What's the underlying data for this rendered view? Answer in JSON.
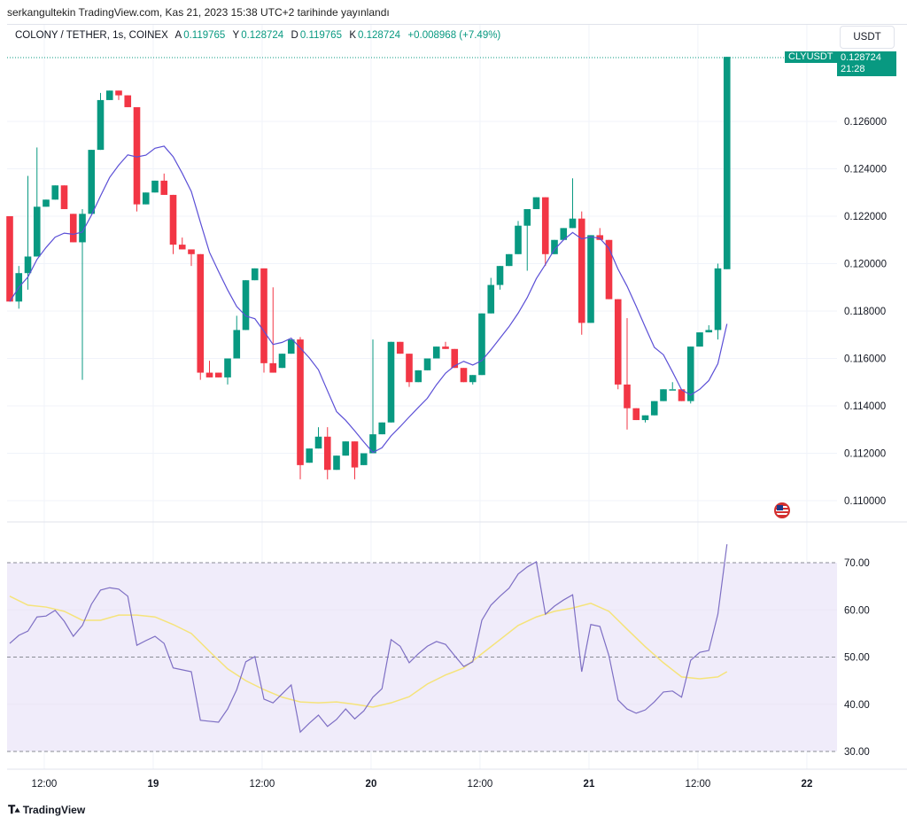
{
  "published": "serkangultekin TradingView.com, Kas 21, 2023 15:38 UTC+2 tarihinde yayınlandı",
  "legend": {
    "symbol": "COLONY / TETHER, 1s, COINEX",
    "open_label": "A",
    "open": "0.119765",
    "high_label": "Y",
    "high": "0.128724",
    "low_label": "D",
    "low": "0.119765",
    "close_label": "K",
    "close": "0.128724",
    "change": "+0.008968 (+7.49%)"
  },
  "currency_button": "USDT",
  "last_price": {
    "ticker": "CLYUSDT",
    "price": "0.128724",
    "countdown": "21:28"
  },
  "colors": {
    "up": "#089981",
    "down": "#f23645",
    "ma": "#5b4fd6",
    "rsi": "#7e6fc4",
    "rsi_ma": "#f5e37a",
    "rsi_band": "#f0ecfa"
  },
  "footer": {
    "brand": "TradingView"
  },
  "icons": {
    "flag": "us-flag-icon",
    "logo": "tradingview-logo-icon"
  },
  "chart_data": {
    "type": "candlestick",
    "price_axis": {
      "ticks": [
        "0.126000",
        "0.124000",
        "0.122000",
        "0.120000",
        "0.118000",
        "0.116000",
        "0.114000",
        "0.112000",
        "0.110000"
      ],
      "values": [
        0.126,
        0.124,
        0.122,
        0.12,
        0.118,
        0.116,
        0.114,
        0.112,
        0.11
      ]
    },
    "time_axis": {
      "ticks": [
        "12:00",
        "19",
        "12:00",
        "20",
        "12:00",
        "21",
        "12:00",
        "22"
      ],
      "bold": [
        false,
        true,
        false,
        true,
        false,
        true,
        false,
        true
      ],
      "candle_index": [
        3.8,
        15.8,
        27.8,
        39.8,
        51.8,
        63.8,
        75.8,
        87.8
      ]
    },
    "ma_period": 9,
    "candles": [
      [
        0.122,
        0.122,
        0.1184,
        0.1184
      ],
      [
        0.1184,
        0.1199,
        0.1181,
        0.1196
      ],
      [
        0.1196,
        0.1237,
        0.1189,
        0.1203
      ],
      [
        0.1203,
        0.1249,
        0.1203,
        0.1224
      ],
      [
        0.1224,
        0.1227,
        0.1224,
        0.1227
      ],
      [
        0.1227,
        0.1233,
        0.1227,
        0.1233
      ],
      [
        0.1233,
        0.1233,
        0.1223,
        0.1223
      ],
      [
        0.1221,
        0.1221,
        0.1209,
        0.1209
      ],
      [
        0.1209,
        0.1223,
        0.1151,
        0.1221
      ],
      [
        0.1221,
        0.1248,
        0.1221,
        0.1248
      ],
      [
        0.1248,
        0.1272,
        0.1248,
        0.1269
      ],
      [
        0.1269,
        0.1273,
        0.1269,
        0.1273
      ],
      [
        0.1273,
        0.1273,
        0.1269,
        0.1271
      ],
      [
        0.1271,
        0.1271,
        0.1266,
        0.1266
      ],
      [
        0.1266,
        0.1266,
        0.1222,
        0.1225
      ],
      [
        0.1225,
        0.123,
        0.1225,
        0.123
      ],
      [
        0.123,
        0.1235,
        0.123,
        0.1235
      ],
      [
        0.1235,
        0.1238,
        0.1229,
        0.1229
      ],
      [
        0.1229,
        0.1229,
        0.1204,
        0.1208
      ],
      [
        0.1208,
        0.1211,
        0.1206,
        0.1206
      ],
      [
        0.1206,
        0.1206,
        0.1199,
        0.1204
      ],
      [
        0.1204,
        0.1204,
        0.1151,
        0.1154
      ],
      [
        0.1154,
        0.1159,
        0.1152,
        0.1152
      ],
      [
        0.1154,
        0.1154,
        0.1152,
        0.1152
      ],
      [
        0.1152,
        0.116,
        0.1149,
        0.116
      ],
      [
        0.116,
        0.1178,
        0.116,
        0.1172
      ],
      [
        0.1172,
        0.1193,
        0.1172,
        0.1193
      ],
      [
        0.1193,
        0.1198,
        0.1193,
        0.1198
      ],
      [
        0.1198,
        0.1198,
        0.1154,
        0.1158
      ],
      [
        0.1158,
        0.119,
        0.1154,
        0.1154
      ],
      [
        0.1156,
        0.1162,
        0.1156,
        0.1162
      ],
      [
        0.1162,
        0.1168,
        0.1162,
        0.1168
      ],
      [
        0.1168,
        0.1169,
        0.1109,
        0.1115
      ],
      [
        0.1116,
        0.1122,
        0.1116,
        0.1122
      ],
      [
        0.1122,
        0.1131,
        0.1122,
        0.1127
      ],
      [
        0.1127,
        0.1131,
        0.1109,
        0.1113
      ],
      [
        0.1113,
        0.1119,
        0.1113,
        0.1119
      ],
      [
        0.1119,
        0.1125,
        0.1119,
        0.1125
      ],
      [
        0.1125,
        0.1125,
        0.1109,
        0.1114
      ],
      [
        0.1115,
        0.112,
        0.1115,
        0.112
      ],
      [
        0.112,
        0.1168,
        0.112,
        0.1128
      ],
      [
        0.1128,
        0.1133,
        0.1128,
        0.1133
      ],
      [
        0.1133,
        0.1167,
        0.1133,
        0.1167
      ],
      [
        0.1167,
        0.1167,
        0.1162,
        0.1162
      ],
      [
        0.1162,
        0.1162,
        0.1148,
        0.115
      ],
      [
        0.115,
        0.1155,
        0.115,
        0.1155
      ],
      [
        0.1155,
        0.116,
        0.1155,
        0.116
      ],
      [
        0.116,
        0.1165,
        0.116,
        0.1165
      ],
      [
        0.1165,
        0.1167,
        0.1164,
        0.1164
      ],
      [
        0.1164,
        0.1164,
        0.1156,
        0.1156
      ],
      [
        0.1156,
        0.1156,
        0.115,
        0.115
      ],
      [
        0.115,
        0.1153,
        0.1149,
        0.1153
      ],
      [
        0.1153,
        0.1179,
        0.1153,
        0.1179
      ],
      [
        0.1179,
        0.1194,
        0.1179,
        0.1191
      ],
      [
        0.1191,
        0.1199,
        0.1189,
        0.1199
      ],
      [
        0.1199,
        0.1204,
        0.1199,
        0.1204
      ],
      [
        0.1204,
        0.1218,
        0.1204,
        0.1216
      ],
      [
        0.1216,
        0.1223,
        0.1197,
        0.1223
      ],
      [
        0.1223,
        0.1228,
        0.1223,
        0.1228
      ],
      [
        0.1228,
        0.1228,
        0.1199,
        0.1204
      ],
      [
        0.1204,
        0.121,
        0.1204,
        0.121
      ],
      [
        0.121,
        0.1215,
        0.121,
        0.1215
      ],
      [
        0.1215,
        0.1236,
        0.1215,
        0.1219
      ],
      [
        0.1219,
        0.1222,
        0.117,
        0.1175
      ],
      [
        0.1175,
        0.1212,
        0.1175,
        0.1212
      ],
      [
        0.1212,
        0.1215,
        0.121,
        0.121
      ],
      [
        0.121,
        0.121,
        0.1185,
        0.1185
      ],
      [
        0.1185,
        0.1185,
        0.1147,
        0.1149
      ],
      [
        0.1149,
        0.1177,
        0.113,
        0.1139
      ],
      [
        0.1139,
        0.1139,
        0.1134,
        0.1134
      ],
      [
        0.1134,
        0.1136,
        0.1133,
        0.1136
      ],
      [
        0.1136,
        0.1142,
        0.1136,
        0.1142
      ],
      [
        0.1142,
        0.1147,
        0.1142,
        0.1147
      ],
      [
        0.1147,
        0.115,
        0.1147,
        0.1147
      ],
      [
        0.1147,
        0.1147,
        0.1142,
        0.1142
      ],
      [
        0.1142,
        0.1165,
        0.1141,
        0.1165
      ],
      [
        0.1165,
        0.1171,
        0.1165,
        0.1171
      ],
      [
        0.1171,
        0.1174,
        0.1171,
        0.1172
      ],
      [
        0.1172,
        0.12,
        0.1168,
        0.1198
      ],
      [
        0.119765,
        0.128724,
        0.119765,
        0.128724
      ]
    ],
    "rsi": {
      "ticks": [
        "70.00",
        "60.00",
        "50.00",
        "40.00",
        "30.00"
      ],
      "tick_values": [
        70,
        60,
        50,
        40,
        30
      ],
      "upper": 70,
      "middle": 50,
      "lower": 30,
      "values": [
        52.9,
        54.6,
        55.5,
        58.5,
        58.7,
        59.9,
        57.6,
        54.4,
        56.7,
        61.2,
        64.2,
        64.7,
        64.4,
        62.9,
        52.5,
        53.5,
        54.4,
        52.9,
        47.7,
        47.3,
        46.9,
        36.6,
        36.4,
        36.2,
        39.0,
        43.1,
        49.0,
        50.1,
        41.1,
        40.3,
        42.2,
        44.1,
        34.1,
        36.0,
        37.7,
        35.3,
        36.8,
        39.0,
        36.9,
        38.6,
        41.5,
        43.3,
        53.7,
        52.3,
        48.8,
        50.7,
        52.3,
        53.3,
        52.7,
        50.3,
        48.0,
        49.0,
        57.8,
        61.0,
        62.9,
        64.6,
        67.6,
        69.1,
        70.2,
        59.1,
        60.8,
        62.1,
        63.2,
        46.9,
        56.9,
        56.5,
        50.3,
        40.9,
        39.0,
        38.1,
        38.8,
        40.5,
        42.6,
        42.8,
        41.5,
        49.3,
        51.0,
        51.4,
        59.1,
        73.9
      ],
      "ma_values_every_2nd_candle": [
        62.9,
        61.0,
        60.6,
        59.7,
        57.8,
        57.8,
        58.9,
        58.9,
        58.5,
        56.9,
        55.0,
        51.2,
        47.5,
        45.0,
        43.1,
        41.5,
        40.5,
        40.3,
        40.5,
        40.0,
        39.4,
        40.3,
        41.6,
        44.3,
        46.2,
        47.7,
        50.7,
        53.7,
        56.7,
        58.5,
        59.7,
        60.4,
        61.4,
        59.7,
        55.9,
        52.2,
        48.8,
        45.8,
        45.4,
        45.8,
        46.9
      ]
    }
  }
}
